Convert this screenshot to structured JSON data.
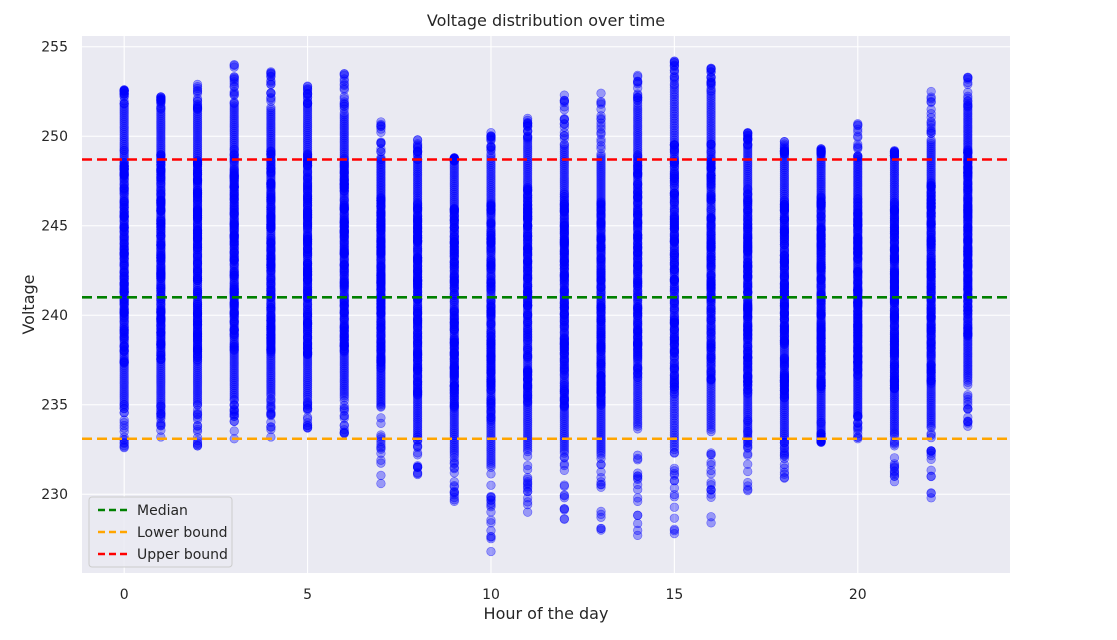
{
  "chart_data": {
    "type": "scatter",
    "title": "Voltage distribution over time",
    "xlabel": "Hour of the day",
    "ylabel": "Voltage",
    "xlim": [
      -1.15,
      24.15
    ],
    "ylim": [
      225.6,
      255.6
    ],
    "xticks": [
      0,
      5,
      10,
      15,
      20
    ],
    "yticks": [
      230,
      235,
      240,
      245,
      250,
      255
    ],
    "grid": true,
    "colors": {
      "background": "#EAEAF2",
      "grid": "#FFFFFF",
      "points": "#0000FF",
      "median": "#008000",
      "lower": "#FFA500",
      "upper": "#FF0000"
    },
    "hours": [
      {
        "hour": 0,
        "min": 232.6,
        "max": 252.6,
        "core": [
          234.8,
          251.8
        ],
        "outliers": [
          232.6,
          233.5,
          235.0,
          252.2,
          252.6
        ]
      },
      {
        "hour": 1,
        "min": 233.2,
        "max": 252.2,
        "core": [
          235.0,
          251.5
        ],
        "outliers": [
          233.2,
          233.9,
          234.5,
          251.9,
          252.2
        ]
      },
      {
        "hour": 2,
        "min": 232.7,
        "max": 252.9,
        "core": [
          235.0,
          251.5
        ],
        "outliers": [
          232.7,
          233.8,
          234.3,
          252.5,
          252.9
        ]
      },
      {
        "hour": 3,
        "min": 233.1,
        "max": 254.0,
        "core": [
          235.3,
          251.8
        ],
        "outliers": [
          233.1,
          235.0,
          252.4,
          252.8,
          254.0
        ]
      },
      {
        "hour": 4,
        "min": 233.2,
        "max": 253.6,
        "core": [
          235.5,
          251.6
        ],
        "outliers": [
          233.2,
          234.4,
          235.0,
          252.9,
          253.6
        ]
      },
      {
        "hour": 5,
        "min": 233.7,
        "max": 252.8,
        "core": [
          235.3,
          251.8
        ],
        "outliers": [
          233.7,
          234.2,
          234.7,
          252.4,
          252.8
        ]
      },
      {
        "hour": 6,
        "min": 233.4,
        "max": 253.5,
        "core": [
          235.5,
          251.3
        ],
        "outliers": [
          233.4,
          234.4,
          252.6,
          253.2,
          253.5
        ]
      },
      {
        "hour": 7,
        "min": 230.6,
        "max": 250.8,
        "core": [
          235.0,
          248.7
        ],
        "outliers": [
          230.6,
          231.9,
          233.2,
          250.4,
          250.8
        ]
      },
      {
        "hour": 8,
        "min": 231.1,
        "max": 249.8,
        "core": [
          233.2,
          248.7
        ],
        "outliers": [
          231.1,
          231.5,
          232.2,
          248.9,
          249.8
        ]
      },
      {
        "hour": 9,
        "min": 229.6,
        "max": 248.8,
        "core": [
          232.3,
          248.6
        ],
        "outliers": [
          229.6,
          230.1,
          230.7,
          231.7,
          248.8
        ]
      },
      {
        "hour": 10,
        "min": 226.8,
        "max": 250.2,
        "core": [
          231.5,
          249.0
        ],
        "outliers": [
          226.8,
          228.4,
          229.3,
          229.5,
          250.2
        ]
      },
      {
        "hour": 11,
        "min": 229.0,
        "max": 251.0,
        "core": [
          232.5,
          249.8
        ],
        "outliers": [
          229.0,
          229.8,
          230.7,
          250.6,
          251.0
        ]
      },
      {
        "hour": 12,
        "min": 228.6,
        "max": 252.3,
        "core": [
          232.3,
          249.5
        ],
        "outliers": [
          228.6,
          250.2,
          250.7,
          252.0,
          252.3
        ]
      },
      {
        "hour": 13,
        "min": 228.0,
        "max": 252.4,
        "core": [
          232.3,
          249.0
        ],
        "outliers": [
          228.0,
          232.0,
          250.2,
          251.0,
          252.4
        ]
      },
      {
        "hour": 14,
        "min": 227.7,
        "max": 253.4,
        "core": [
          233.8,
          251.7
        ],
        "outliers": [
          227.7,
          229.6,
          230.9,
          232.0,
          253.4
        ]
      },
      {
        "hour": 15,
        "min": 227.8,
        "max": 254.2,
        "core": [
          232.5,
          252.6
        ],
        "outliers": [
          227.8,
          232.3,
          253.3,
          253.7,
          254.2
        ]
      },
      {
        "hour": 16,
        "min": 228.4,
        "max": 253.8,
        "core": [
          233.5,
          252.5
        ],
        "outliers": [
          228.4,
          232.2,
          253.0,
          253.3,
          253.8
        ]
      },
      {
        "hour": 17,
        "min": 230.2,
        "max": 250.2,
        "core": [
          233.2,
          249.5
        ],
        "outliers": [
          230.2,
          233.5,
          234.1,
          249.8,
          250.2
        ]
      },
      {
        "hour": 18,
        "min": 230.9,
        "max": 249.7,
        "core": [
          232.9,
          249.0
        ],
        "outliers": [
          230.9,
          232.0,
          232.9,
          249.3,
          249.7
        ]
      },
      {
        "hour": 19,
        "min": 232.9,
        "max": 249.3,
        "core": [
          233.4,
          249.0
        ],
        "outliers": [
          232.9,
          233.4,
          234.0,
          249.3
        ]
      },
      {
        "hour": 20,
        "min": 233.1,
        "max": 250.7,
        "core": [
          234.5,
          248.7
        ],
        "outliers": [
          233.1,
          233.8,
          234.4,
          248.9,
          250.7
        ]
      },
      {
        "hour": 21,
        "min": 230.7,
        "max": 249.2,
        "core": [
          233.5,
          248.9
        ],
        "outliers": [
          230.7,
          231.3,
          231.7,
          232.7,
          249.2
        ]
      },
      {
        "hour": 22,
        "min": 229.8,
        "max": 252.5,
        "core": [
          233.8,
          249.8
        ],
        "outliers": [
          229.8,
          232.3,
          233.3,
          251.5,
          252.5
        ]
      },
      {
        "hour": 23,
        "min": 233.8,
        "max": 253.3,
        "core": [
          236.5,
          251.5
        ],
        "outliers": [
          233.8,
          234.3,
          235.0,
          253.0,
          253.3
        ]
      }
    ],
    "reference_lines": [
      {
        "name": "Median",
        "value": 241.0,
        "color": "#008000"
      },
      {
        "name": "Lower bound",
        "value": 233.1,
        "color": "#FFA500"
      },
      {
        "name": "Upper bound",
        "value": 248.7,
        "color": "#FF0000"
      }
    ],
    "legend": {
      "placement": "lower-left",
      "entries": [
        "Median",
        "Lower bound",
        "Upper bound"
      ]
    }
  }
}
